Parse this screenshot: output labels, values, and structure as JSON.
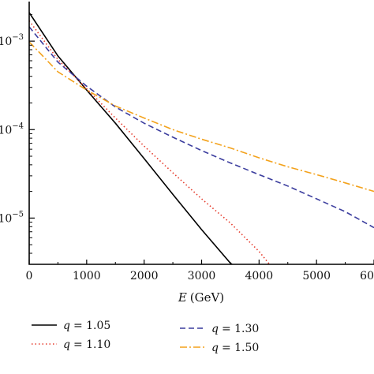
{
  "chart_data": {
    "type": "line",
    "xlabel_var": "E",
    "xlabel_unit": "(GeV)",
    "xlim": [
      0,
      6000
    ],
    "ylim": [
      3e-06,
      0.0028
    ],
    "yscale": "log",
    "x_ticks": [
      {
        "value": 0,
        "label": "0"
      },
      {
        "value": 1000,
        "label": "1000"
      },
      {
        "value": 2000,
        "label": "2000"
      },
      {
        "value": 3000,
        "label": "3000"
      },
      {
        "value": 4000,
        "label": "4000"
      },
      {
        "value": 5000,
        "label": "5000"
      },
      {
        "value": 6000,
        "label": "6000"
      }
    ],
    "y_ticks": [
      {
        "value": 0.001,
        "base": "10",
        "exp": "−3"
      },
      {
        "value": 0.0001,
        "base": "10",
        "exp": "−4"
      },
      {
        "value": 1e-05,
        "base": "10",
        "exp": "−5"
      }
    ],
    "legend_position": "below",
    "series": [
      {
        "name_var": "q",
        "name_value": "= 1.05",
        "color": "#000000",
        "dash": "solid",
        "x": [
          0,
          500,
          1000,
          1500,
          2000,
          2500,
          3000,
          3500,
          3560
        ],
        "y": [
          0.0021,
          0.00068,
          0.00028,
          0.000118,
          4.7e-05,
          1.85e-05,
          7.4e-06,
          3.1e-06,
          2.9e-06
        ]
      },
      {
        "name_var": "q",
        "name_value": "= 1.10",
        "color": "#e53b2c",
        "dash": "dot",
        "x": [
          0,
          500,
          1000,
          1500,
          2000,
          2500,
          3000,
          3500,
          4000,
          4200
        ],
        "y": [
          0.0017,
          0.00062,
          0.00029,
          0.000135,
          6.5e-05,
          3.25e-05,
          1.65e-05,
          8.8e-06,
          4.2e-06,
          2.9e-06
        ]
      },
      {
        "name_var": "q",
        "name_value": "= 1.30",
        "color": "#3b3d9e",
        "dash": "dash",
        "x": [
          0,
          500,
          1000,
          1500,
          2000,
          2500,
          3000,
          3500,
          4000,
          4500,
          5000,
          5500,
          6000
        ],
        "y": [
          0.00145,
          0.00058,
          0.00031,
          0.00018,
          0.000118,
          8.2e-05,
          5.8e-05,
          4.2e-05,
          3.1e-05,
          2.3e-05,
          1.65e-05,
          1.18e-05,
          7.8e-06
        ]
      },
      {
        "name_var": "q",
        "name_value": "= 1.50",
        "color": "#f3a21c",
        "dash": "dashdot",
        "x": [
          0,
          500,
          1000,
          1500,
          2000,
          2500,
          3000,
          3500,
          4000,
          4500,
          5000,
          5500,
          6000
        ],
        "y": [
          0.00098,
          0.00045,
          0.00028,
          0.000185,
          0.000135,
          0.0001,
          7.8e-05,
          6.2e-05,
          4.8e-05,
          3.8e-05,
          3.1e-05,
          2.5e-05,
          2e-05
        ]
      }
    ]
  }
}
